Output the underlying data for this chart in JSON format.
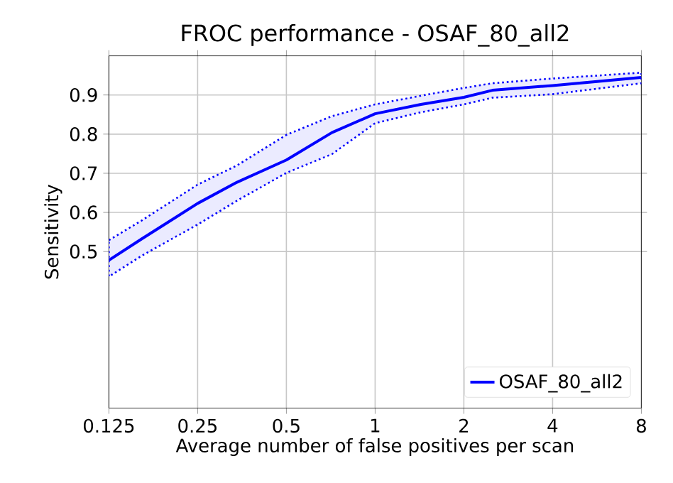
{
  "chart_data": {
    "type": "line",
    "title": "FROC performance - OSAF_80_all2",
    "xlabel": "Average number of false positives per scan",
    "ylabel": "Sensitivity",
    "x": [
      0.125,
      0.162,
      0.25,
      0.34,
      0.5,
      0.714,
      1,
      1.43,
      2,
      2.5,
      4,
      8
    ],
    "series": [
      {
        "name": "OSAF_80_all2",
        "color": "#0000ff",
        "values": [
          0.478,
          0.533,
          0.623,
          0.677,
          0.734,
          0.804,
          0.852,
          0.876,
          0.894,
          0.912,
          0.924,
          0.945
        ],
        "lower": [
          0.436,
          0.49,
          0.569,
          0.63,
          0.701,
          0.749,
          0.828,
          0.856,
          0.876,
          0.893,
          0.902,
          0.93
        ],
        "upper": [
          0.529,
          0.58,
          0.671,
          0.72,
          0.798,
          0.846,
          0.876,
          0.898,
          0.918,
          0.93,
          0.942,
          0.957
        ]
      }
    ],
    "log": "x",
    "xlim": [
      0.125,
      8
    ],
    "ylim": [
      0.1,
      1.0
    ],
    "xticks": [
      0.125,
      0.25,
      0.5,
      1,
      2,
      4,
      8
    ],
    "yticks": [
      0.5,
      0.6,
      0.7,
      0.8,
      0.9
    ],
    "grid": true,
    "legend": "bottom right",
    "marker": "none",
    "line_style": "solid"
  }
}
